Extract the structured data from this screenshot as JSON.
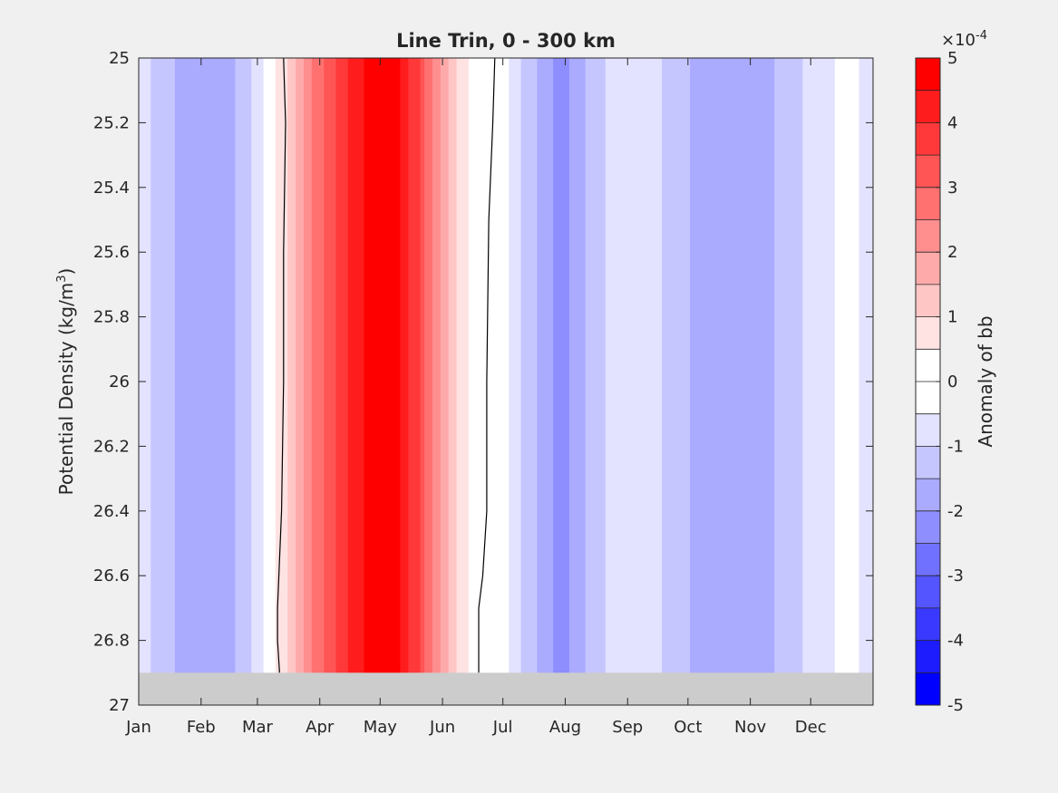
{
  "chart_data": {
    "type": "heatmap",
    "title": "Line Trin, 0 - 300 km",
    "ylabel": "Potential Density (kg/m",
    "ylabel_sup": "3",
    "ylabel_close": ")",
    "xlabel": "",
    "x_tick_labels": [
      "Jan",
      "Feb",
      "Mar",
      "Apr",
      "May",
      "Jun",
      "Jul",
      "Aug",
      "Sep",
      "Oct",
      "Nov",
      "Dec"
    ],
    "x_tick_days": [
      1,
      32,
      60,
      91,
      121,
      152,
      182,
      213,
      244,
      274,
      305,
      335
    ],
    "xlim": [
      1,
      366
    ],
    "y_ticks": [
      25,
      25.2,
      25.4,
      25.6,
      25.8,
      26,
      26.2,
      26.4,
      26.6,
      26.8,
      27
    ],
    "y_tick_labels": [
      "25",
      "25.2",
      "25.4",
      "25.6",
      "25.8",
      "26",
      "26.2",
      "26.4",
      "26.6",
      "26.8",
      "27"
    ],
    "ylim": [
      25,
      27
    ],
    "y_reversed": true,
    "no_data_band": {
      "from": 26.9,
      "to": 27,
      "color": "#cccccc"
    },
    "colorbar": {
      "label": "Anomaly of bb",
      "exponent_prefix": "×10",
      "exponent": "-4",
      "range": [
        -5,
        5
      ],
      "tick_values": [
        5,
        4,
        3,
        2,
        1,
        0,
        -1,
        -2,
        -3,
        -4,
        -5
      ],
      "tick_labels": [
        "5",
        "4",
        "3",
        "2",
        "1",
        "0",
        "-1",
        "-2",
        "-3",
        "-4",
        "-5"
      ],
      "levels": [
        {
          "from": 4.5,
          "to": 5.0,
          "color": "#ff0000"
        },
        {
          "from": 4.0,
          "to": 4.5,
          "color": "#ff1c1c"
        },
        {
          "from": 3.5,
          "to": 4.0,
          "color": "#ff3939"
        },
        {
          "from": 3.0,
          "to": 3.5,
          "color": "#ff5555"
        },
        {
          "from": 2.5,
          "to": 3.0,
          "color": "#ff7171"
        },
        {
          "from": 2.0,
          "to": 2.5,
          "color": "#ff8e8e"
        },
        {
          "from": 1.5,
          "to": 2.0,
          "color": "#ffaaaa"
        },
        {
          "from": 1.0,
          "to": 1.5,
          "color": "#ffc6c6"
        },
        {
          "from": 0.5,
          "to": 1.0,
          "color": "#ffe3e3"
        },
        {
          "from": 0.0,
          "to": 0.5,
          "color": "#ffffff"
        },
        {
          "from": -0.5,
          "to": 0.0,
          "color": "#ffffff"
        },
        {
          "from": -1.0,
          "to": -0.5,
          "color": "#e3e3ff"
        },
        {
          "from": -1.5,
          "to": -1.0,
          "color": "#c6c6ff"
        },
        {
          "from": -2.0,
          "to": -1.5,
          "color": "#aaaaff"
        },
        {
          "from": -2.5,
          "to": -2.0,
          "color": "#8e8eff"
        },
        {
          "from": -3.0,
          "to": -2.5,
          "color": "#7171ff"
        },
        {
          "from": -3.5,
          "to": -3.0,
          "color": "#5555ff"
        },
        {
          "from": -4.0,
          "to": -3.5,
          "color": "#3939ff"
        },
        {
          "from": -4.5,
          "to": -4.0,
          "color": "#1c1cff"
        },
        {
          "from": -5.0,
          "to": -4.5,
          "color": "#0000ff"
        }
      ]
    },
    "approx_anomaly_profile_by_day": [
      {
        "day": 1,
        "value": -0.8
      },
      {
        "day": 12,
        "value": -1.2
      },
      {
        "day": 25,
        "value": -1.8
      },
      {
        "day": 40,
        "value": -1.9
      },
      {
        "day": 52,
        "value": -1.4
      },
      {
        "day": 62,
        "value": -0.7
      },
      {
        "day": 68,
        "value": 0.3
      },
      {
        "day": 73,
        "value": 0.8
      },
      {
        "day": 80,
        "value": 1.6
      },
      {
        "day": 88,
        "value": 2.5
      },
      {
        "day": 97,
        "value": 3.3
      },
      {
        "day": 106,
        "value": 4.0
      },
      {
        "day": 114,
        "value": 4.6
      },
      {
        "day": 122,
        "value": 4.7
      },
      {
        "day": 130,
        "value": 4.5
      },
      {
        "day": 138,
        "value": 3.8
      },
      {
        "day": 145,
        "value": 2.8
      },
      {
        "day": 152,
        "value": 1.8
      },
      {
        "day": 160,
        "value": 0.9
      },
      {
        "day": 167,
        "value": 0.2
      },
      {
        "day": 174,
        "value": -0.1
      },
      {
        "day": 184,
        "value": -0.4
      },
      {
        "day": 194,
        "value": -1.2
      },
      {
        "day": 203,
        "value": -1.8
      },
      {
        "day": 212,
        "value": -2.2
      },
      {
        "day": 222,
        "value": -1.6
      },
      {
        "day": 234,
        "value": -0.9
      },
      {
        "day": 244,
        "value": -0.6
      },
      {
        "day": 255,
        "value": -0.8
      },
      {
        "day": 268,
        "value": -1.3
      },
      {
        "day": 285,
        "value": -1.8
      },
      {
        "day": 300,
        "value": -1.9
      },
      {
        "day": 314,
        "value": -1.6
      },
      {
        "day": 327,
        "value": -1.1
      },
      {
        "day": 340,
        "value": -0.7
      },
      {
        "day": 352,
        "value": -0.4
      },
      {
        "day": 366,
        "value": -0.6
      }
    ],
    "zero_contours": [
      {
        "points": [
          [
            73,
            25.0
          ],
          [
            74,
            25.2
          ],
          [
            73,
            25.6
          ],
          [
            73,
            26.0
          ],
          [
            72,
            26.4
          ],
          [
            70,
            26.7
          ],
          [
            70,
            26.8
          ],
          [
            71,
            26.9
          ]
        ]
      },
      {
        "points": [
          [
            178,
            25.0
          ],
          [
            177,
            25.2
          ],
          [
            175,
            25.5
          ],
          [
            174,
            26.0
          ],
          [
            174,
            26.4
          ],
          [
            172,
            26.6
          ],
          [
            170,
            26.7
          ],
          [
            170,
            26.9
          ]
        ]
      }
    ]
  }
}
